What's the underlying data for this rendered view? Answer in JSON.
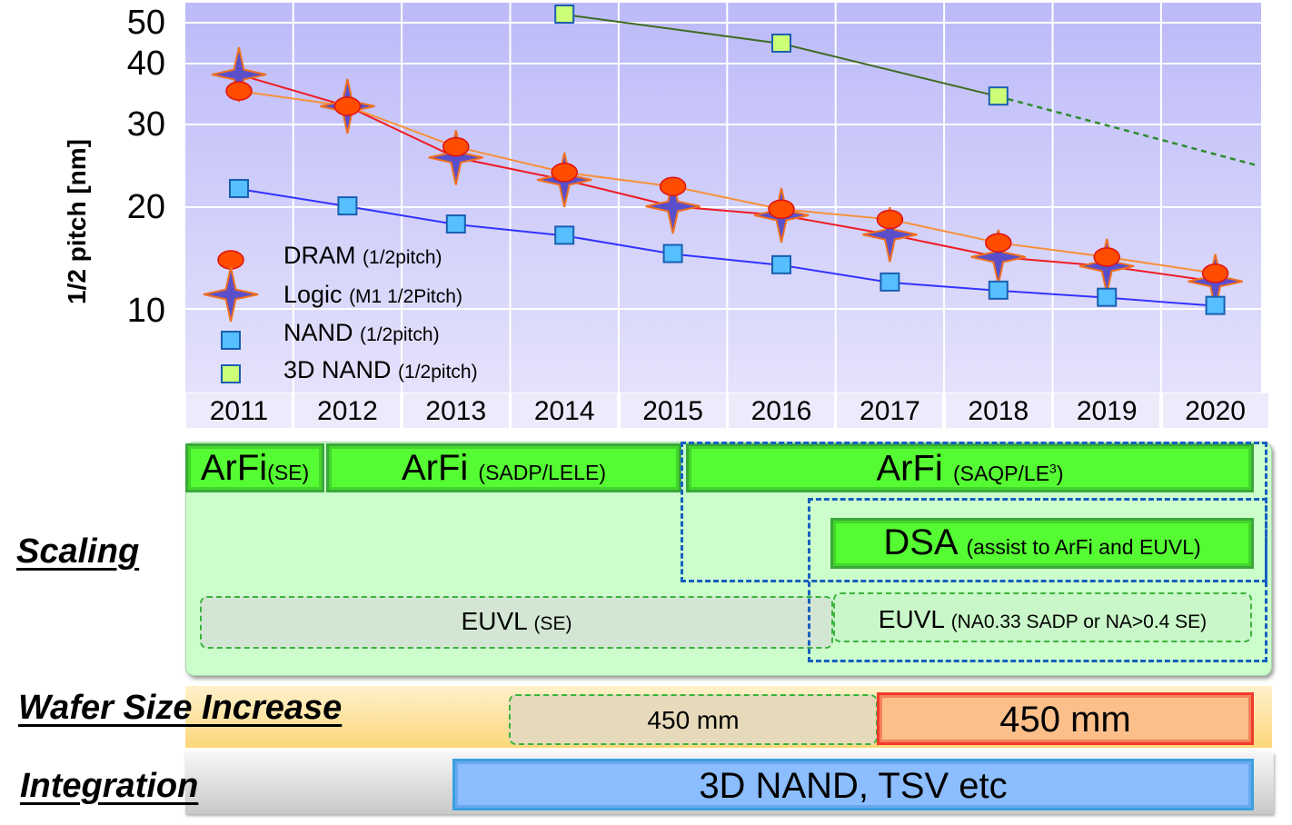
{
  "chart_data": {
    "type": "line",
    "ylabel": "1/2 pitch [nm]",
    "y_ticks": [
      "50",
      "40",
      "30",
      "20",
      "10"
    ],
    "y_tick_values": [
      50,
      40,
      30,
      20,
      10
    ],
    "x": [
      2011,
      2012,
      2013,
      2014,
      2015,
      2016,
      2017,
      2018,
      2019,
      2020
    ],
    "x_tick_labels": [
      "2011",
      "2012",
      "2013",
      "2014",
      "2015",
      "2016",
      "2017",
      "2018",
      "2019",
      "2020"
    ],
    "grid": true,
    "legend_placement": "bottom-left",
    "series": [
      {
        "name": "DRAM",
        "note": "(1/2pitch)",
        "marker": "ellipse",
        "color": "#f7913a",
        "marker_color": "#ff4d00",
        "x": [
          2011,
          2012,
          2013,
          2014,
          2015,
          2016,
          2017,
          2018,
          2019,
          2020
        ],
        "values": [
          35.5,
          33,
          27.3,
          24.2,
          22.5,
          19.8,
          18.8,
          16.5,
          15.1,
          13.5
        ]
      },
      {
        "name": "Logic",
        "note": "(M1 1/2Pitch)",
        "marker": "star",
        "color": "#ee1c25",
        "marker_color": "#5b4fc9",
        "x": [
          2011,
          2012,
          2013,
          2014,
          2015,
          2016,
          2017,
          2018,
          2019,
          2020
        ],
        "values": [
          38.2,
          33,
          26,
          23.3,
          20.1,
          19.2,
          17.3,
          15.1,
          14.2,
          12.7
        ]
      },
      {
        "name": "NAND",
        "note": "(1/2pitch)",
        "marker": "square",
        "color": "#3333ff",
        "marker_color": "#55bfff",
        "x": [
          2011,
          2012,
          2013,
          2014,
          2015,
          2016,
          2017,
          2018,
          2019,
          2020
        ],
        "values": [
          22.2,
          20.1,
          18.3,
          17.2,
          15.4,
          14.3,
          12.6,
          11.8,
          11.1,
          10.3
        ]
      },
      {
        "name": "3D NAND",
        "note": "(1/2pitch)",
        "marker": "square",
        "color": "#3d6b22",
        "marker_color": "#ccff77",
        "x": [
          2014,
          2016,
          2018
        ],
        "values": [
          52,
          44.9,
          34.6
        ],
        "projection": {
          "x": [
            2018,
            2020.4
          ],
          "values": [
            34.6,
            25
          ],
          "style": "dashed",
          "color": "#2e8b2e"
        }
      }
    ]
  },
  "roadmap": {
    "scaling": {
      "label": "Scaling",
      "arfi_se": {
        "main": "ArFi",
        "sub": "(SE)"
      },
      "arfi_sadp": {
        "main": "ArFi",
        "sub": "(SADP/LELE)"
      },
      "arfi_saqp": {
        "main": "ArFi",
        "sub": "(SAQP/LE",
        "sup": "3",
        "close": ")"
      },
      "dsa": {
        "main": "DSA",
        "sub": "(assist  to ArFi and EUVL)"
      },
      "euvl_se": {
        "main": "EUVL",
        "sub": "(SE)"
      },
      "euvl_na": {
        "main": "EUVL",
        "sub": "(NA0.33  SADP or NA>0.4 SE)"
      }
    },
    "wafer": {
      "label": "Wafer Size Increase",
      "tentative": "450 mm",
      "main": "450 mm"
    },
    "integration": {
      "label": "Integration",
      "main": "3D NAND, TSV etc"
    }
  }
}
